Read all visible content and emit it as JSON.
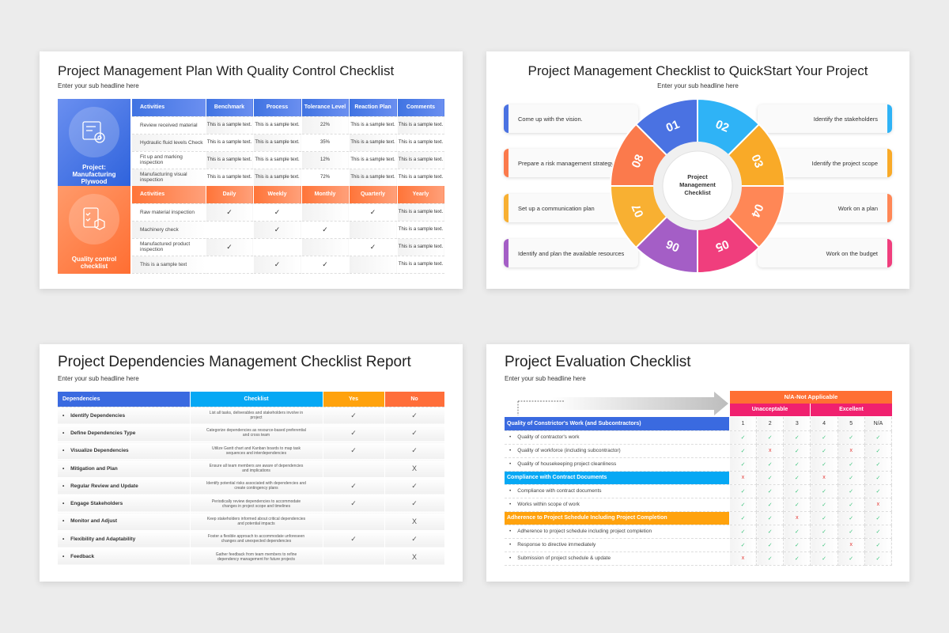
{
  "slide1": {
    "title": "Project Management Plan With Quality Control Checklist",
    "subtitle": "Enter your sub headline here",
    "panel_top": "Project: Manufacturing Plywood",
    "panel_bottom": "Quality control checklist",
    "headers_top": [
      "Activities",
      "Benchmark",
      "Process",
      "Tolerance Level",
      "Reaction Plan",
      "Comments"
    ],
    "rows_top": [
      [
        "Review received material",
        "This is a sample text.",
        "This is a sample text.",
        "22%",
        "This is a sample text.",
        "This is a sample text."
      ],
      [
        "Hydraulic fluid levels Check",
        "This is a sample text.",
        "This is a sample text.",
        "35%",
        "This is a sample text.",
        "This is a sample text."
      ],
      [
        "Fit up and marking inspection",
        "This is a sample text.",
        "This is a sample text.",
        "12%",
        "This is a sample text.",
        "This is a sample text."
      ],
      [
        "Manufacturing visual inspection",
        "This is a sample text.",
        "This is a sample text.",
        "72%",
        "This is a sample text.",
        "This is a sample text."
      ]
    ],
    "headers_bottom": [
      "Activities",
      "Daily",
      "Weekly",
      "Monthly",
      "Quarterly",
      "Yearly"
    ],
    "rows_bottom": [
      [
        "Raw material inspection",
        "✓",
        "✓",
        "",
        "✓",
        "This is a sample text."
      ],
      [
        "Machinery check",
        "",
        "✓",
        "✓",
        "",
        "This is a sample text."
      ],
      [
        "Manufactured product inspection",
        "✓",
        "",
        "",
        "✓",
        "This is a sample text."
      ],
      [
        "This is a sample text",
        "",
        "✓",
        "✓",
        "",
        "This is a sample text."
      ]
    ],
    "colors": {
      "blue": "#3b6fe0",
      "orange": "#ff7a3d"
    }
  },
  "slide2": {
    "title": "Project Management Checklist to QuickStart Your Project",
    "subtitle": "Enter your sub headline here",
    "center": [
      "Project",
      "Management",
      "Checklist"
    ],
    "steps": [
      {
        "n": "01",
        "text": "Come up with the vision.",
        "color": "#4a72e2"
      },
      {
        "n": "02",
        "text": "Identify the stakeholders",
        "color": "#2fb3f6"
      },
      {
        "n": "03",
        "text": "Identify the project scope",
        "color": "#f9aa28"
      },
      {
        "n": "04",
        "text": "Work on a plan",
        "color": "#ff8756"
      },
      {
        "n": "05",
        "text": "Work on the budget",
        "color": "#f03e7d"
      },
      {
        "n": "06",
        "text": "Identify and plan the available resources",
        "color": "#a45ec6"
      },
      {
        "n": "07",
        "text": "Set up a communication plan",
        "color": "#f8b032"
      },
      {
        "n": "08",
        "text": "Prepare a risk management strategy",
        "color": "#fb7a4c"
      }
    ]
  },
  "slide3": {
    "title": "Project Dependencies Management Checklist Report",
    "subtitle": "Enter your sub headline here",
    "headers": [
      "Dependencies",
      "Checklist",
      "Yes",
      "No"
    ],
    "header_colors": [
      "#3a6ae0",
      "#06a8f4",
      "#ffa20d",
      "#ff6e3a"
    ],
    "rows": [
      [
        "Identify Dependencies",
        "List all tasks, deliverables and stakeholders involve in project",
        "✓",
        "✓"
      ],
      [
        "Define Dependencies Type",
        "Categorize dependencies as resource-based preferential and cross team",
        "✓",
        "✓"
      ],
      [
        "Visualize Dependencies",
        "Utilize Gantt chart and Kanban boards to map task sequences and interdependencies",
        "✓",
        "✓"
      ],
      [
        "Mitigation and Plan",
        "Ensure all team members are aware of dependencies and implications",
        "",
        "X"
      ],
      [
        "Regular Review and Update",
        "Identify potential risks associated with dependencies and create contingency plans",
        "✓",
        "✓"
      ],
      [
        "Engage Stakeholders",
        "Periodically review dependencies to accommodate changes in project scope and timelines",
        "✓",
        "✓"
      ],
      [
        "Monitor and Adjust",
        "Keep stakeholders informed about critical dependencies and potential impacts",
        "",
        "X"
      ],
      [
        "Flexibility and Adaptability",
        "Foster a flexible approach to accommodate unforeseen changes and unexpected dependencies",
        "✓",
        "✓"
      ],
      [
        "Feedback",
        "Gather feedback from team members to refine dependency management for future projects",
        "",
        "X"
      ]
    ]
  },
  "slide4": {
    "title": "Project Evaluation Checklist",
    "subtitle": "Enter your sub headline here",
    "na_header": "N/A-Not Applicable",
    "unacceptable": "Unacceptable",
    "excellent": "Excellent",
    "scale": [
      "1",
      "2",
      "3",
      "4",
      "5",
      "N/A"
    ],
    "rows": [
      {
        "type": "section",
        "label": "Quality of Constrictor's Work (and Subcontractors)",
        "color": "#3a6ae0",
        "marks": [
          "1",
          "2",
          "3",
          "4",
          "5",
          "N/A"
        ]
      },
      {
        "type": "item",
        "label": "Quality of contractor's work",
        "marks": [
          "✓",
          "✓",
          "✓",
          "✓",
          "✓",
          "✓"
        ]
      },
      {
        "type": "item",
        "label": "Quality of workforce (including subcontractor)",
        "marks": [
          "✓",
          "x",
          "✓",
          "✓",
          "x",
          "✓"
        ]
      },
      {
        "type": "item",
        "label": "Quality of housekeeping project cleanliness",
        "marks": [
          "✓",
          "✓",
          "✓",
          "✓",
          "✓",
          "✓"
        ]
      },
      {
        "type": "section",
        "label": "Compliance with Contract Documents",
        "color": "#06a8f4",
        "marks": [
          "x",
          "✓",
          "✓",
          "x",
          "✓",
          "✓"
        ]
      },
      {
        "type": "item",
        "label": "Compliance with contract documents",
        "marks": [
          "✓",
          "✓",
          "✓",
          "✓",
          "✓",
          "✓"
        ]
      },
      {
        "type": "item",
        "label": "Works within scope of work",
        "marks": [
          "✓",
          "✓",
          "✓",
          "✓",
          "✓",
          "x"
        ]
      },
      {
        "type": "section",
        "label": "Adherence to Project Schedule Including Project Completion",
        "color": "#ffa20d",
        "marks": [
          "✓",
          "✓",
          "x",
          "✓",
          "✓",
          "✓"
        ]
      },
      {
        "type": "item",
        "label": "Adherence to project schedule including project completion",
        "marks": [
          "✓",
          "✓",
          "✓",
          "✓",
          "✓",
          "✓"
        ]
      },
      {
        "type": "item",
        "label": "Response to directive immediately",
        "marks": [
          "✓",
          "✓",
          "✓",
          "✓",
          "x",
          "✓"
        ]
      },
      {
        "type": "item",
        "label": "Submission of project schedule & update",
        "marks": [
          "x",
          "✓",
          "✓",
          "✓",
          "✓",
          "✓"
        ]
      }
    ]
  }
}
